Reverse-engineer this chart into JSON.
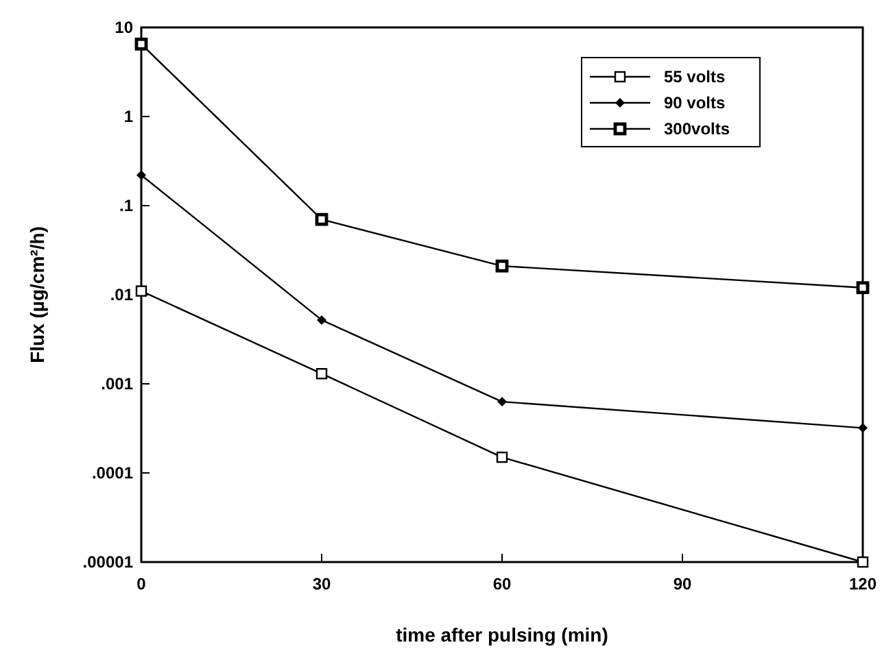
{
  "chart_data": {
    "type": "line",
    "xlabel": "time after pulsing (min)",
    "ylabel": "Flux (µg/cm²/h)",
    "x": [
      0,
      30,
      60,
      120
    ],
    "series": [
      {
        "name": "55 volts",
        "color": "#000000",
        "marker": "square",
        "values": [
          0.011,
          0.0013,
          0.00015,
          1e-05
        ]
      },
      {
        "name": "90 volts",
        "color": "#000000",
        "marker": "diamond",
        "values": [
          0.22,
          0.0052,
          0.00063,
          0.00032
        ]
      },
      {
        "name": "300volts",
        "color": "#000000",
        "marker": "square",
        "values": [
          6.5,
          0.07,
          0.021,
          0.012
        ]
      }
    ],
    "log": "y",
    "xlim": [
      0,
      120
    ],
    "xticks": [
      0,
      30,
      60,
      90,
      120
    ],
    "ylim": [
      1e-05,
      10
    ],
    "yticks": [
      {
        "value": 10,
        "label": "10"
      },
      {
        "value": 1,
        "label": "1"
      },
      {
        "value": 0.1,
        "label": ".1"
      },
      {
        "value": 0.01,
        "label": ".01"
      },
      {
        "value": 0.001,
        "label": ".001"
      },
      {
        "value": 0.0001,
        "label": ".0001"
      },
      {
        "value": 1e-05,
        "label": ".00001"
      }
    ],
    "legend": "top right",
    "line_style": "solid"
  }
}
